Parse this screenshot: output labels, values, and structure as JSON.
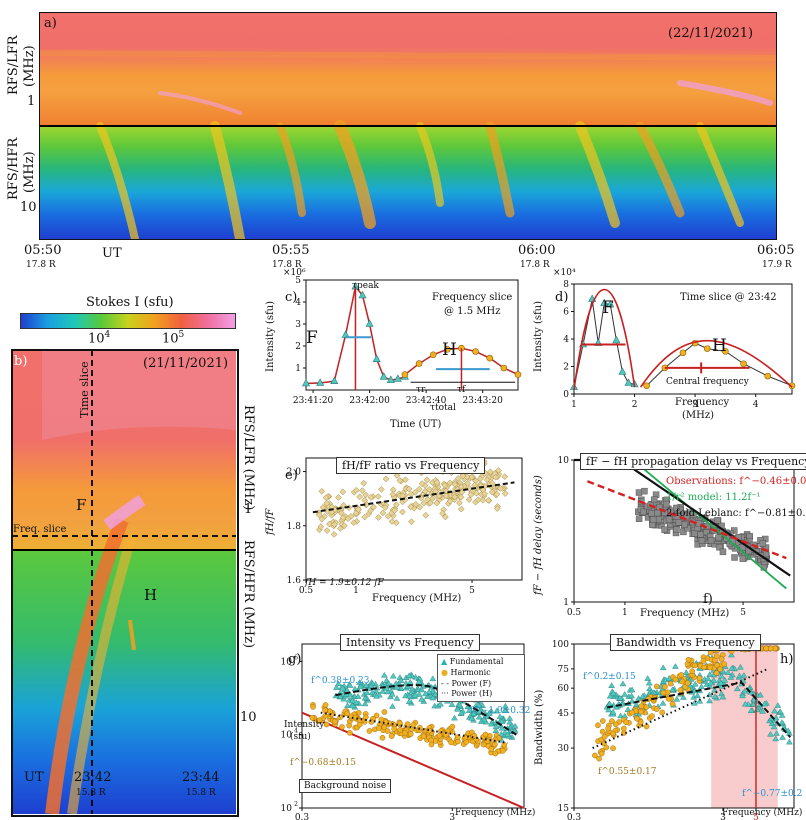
{
  "panel_a": {
    "label": "a)",
    "date": "(22/11/2021)",
    "ylabel_lfr": "RFS/LFR",
    "ylabel_lfr_unit": "(MHz)",
    "ylabel_hfr": "RFS/HFR",
    "ylabel_hfr_unit": "(MHz)",
    "ytick_1": "1",
    "ytick_10": "10",
    "xticks": [
      "05:50",
      "05:55",
      "06:00",
      "06:05"
    ],
    "xticks_dist": [
      "17.8",
      "17.8",
      "17.8",
      "17.9"
    ],
    "dist_unit": "R",
    "ut_label": "UT"
  },
  "colorbar": {
    "title": "Stokes I (sfu)",
    "tick_1e4": "10",
    "tick_1e4_exp": "4",
    "tick_1e5": "10",
    "tick_1e5_exp": "5",
    "colors": [
      "#1e3fd0",
      "#1a9fe0",
      "#1ec8b8",
      "#58c93a",
      "#c8d21e",
      "#f2a01e",
      "#f06040",
      "#f06fa0",
      "#f0a0e6"
    ]
  },
  "panel_b": {
    "label": "b)",
    "date": "(21/11/2021)",
    "time_slice": "Time slice",
    "freq_slice": "Freq. slice",
    "F": "F",
    "H": "H",
    "ylabel_lfr": "RFS/LFR (MHz)",
    "ylabel_hfr": "RFS/HFR (MHz)",
    "ytick_1": "1",
    "ytick_10": "10",
    "xticks": [
      "23:42",
      "23:44"
    ],
    "xticks_dist": [
      "15.8",
      "15.8"
    ],
    "ut_label": "UT"
  },
  "panel_c": {
    "label": "c)",
    "title_line1": "Frequency slice",
    "title_line2": "@ 1.5 MHz",
    "ylabel": "Intensity (sfu)",
    "xlabel": "Time (UT)",
    "scale": "×10⁶",
    "yticks": [
      "1",
      "2",
      "3",
      "4",
      "5"
    ],
    "xticks": [
      "23:41:20",
      "23:42:00",
      "23:42:40",
      "23:43:20"
    ],
    "F": "F",
    "H": "H",
    "tau_peak": "τpeak",
    "tau_r": "τr",
    "tau_f": "τf",
    "tau_total": "τtotal"
  },
  "panel_d": {
    "label": "d)",
    "title": "Time slice @ 23:42",
    "ylabel": "Intensity (sfu)",
    "xlabel_line1": "Frequency",
    "xlabel_line2": "(MHz)",
    "scale": "×10⁴",
    "yticks": [
      "0",
      "2",
      "4",
      "6",
      "8"
    ],
    "xticks": [
      "1",
      "2",
      "3",
      "4"
    ],
    "F": "F",
    "H": "H",
    "central": "Central frequency"
  },
  "panel_e": {
    "label": "e)",
    "title": "fH/fF ratio vs Frequency",
    "ylabel": "fH/fF",
    "xlabel": "Frequency (MHz)",
    "yticks": [
      "1.6",
      "1.8",
      "2.0"
    ],
    "xticks": [
      "0.5",
      "1",
      "5"
    ],
    "fit_label": "fH = 1.9±0.12 fF"
  },
  "panel_f": {
    "label": "f)",
    "title": "fF − fH propagation delay vs Frequency",
    "ylabel": "fF − fH delay (seconds)",
    "xlabel": "Frequency (MHz)",
    "yticks": [
      "1",
      "10"
    ],
    "xticks": [
      "0.5",
      "1",
      "5"
    ],
    "legend_obs": "Observations: f^−0.46±0.04",
    "legend_model": "1/r² model: 11.2f⁻¹",
    "legend_leblanc": "2-fold Leblanc: f^−0.81±0.05",
    "colors": {
      "obs": "#d42020",
      "model": "#1faa55",
      "leblanc": "#111111"
    }
  },
  "panel_g": {
    "label": "g)",
    "title": "Intensity vs Frequency",
    "ylabel_line1": "Intensity",
    "ylabel_line2": "(sfu)",
    "xlabel": "Frequency (MHz)",
    "yticks_exp": [
      "2",
      "4",
      "6"
    ],
    "xticks": [
      "0.3",
      "3"
    ],
    "legend": [
      "Fundamental",
      "Harmonic",
      "Power (F)",
      "Power (H)"
    ],
    "fit_F_top": "f^0.38±0.23",
    "fit_F_right": "f^−1.9±0.32",
    "fit_H": "f^−0.68±0.15",
    "background": "Background noise"
  },
  "panel_h": {
    "label": "h)",
    "title": "Bandwidth vs Frequency",
    "ylabel": "Bandwidth (%)",
    "xlabel": "Frequency (MHz)",
    "yticks": [
      "15",
      "30",
      "45",
      "60",
      "75",
      "100"
    ],
    "xticks": [
      "0.3",
      "3",
      "5"
    ],
    "fit_F": "f^0.2±0.15",
    "fit_H": "f^0.55±0.17",
    "fit_right": "f^−0.77±0.2"
  },
  "chart_data": [
    {
      "type": "heatmap",
      "title": "Dynamic spectrum (22/11/2021)",
      "xlabel": "UT",
      "ylabel": "Frequency (MHz)",
      "x_ticks": [
        "05:50",
        "05:55",
        "06:00",
        "06:05"
      ],
      "y_ticks": [
        1,
        10
      ]
    },
    {
      "type": "heatmap",
      "title": "Dynamic spectrum (21/11/2021)",
      "x_ticks": [
        "23:42",
        "23:44"
      ],
      "y_ticks": [
        1,
        10
      ]
    },
    {
      "type": "line",
      "title": "Frequency slice @ 1.5 MHz",
      "xlabel": "Time (UT)",
      "ylabel": "Intensity (sfu)",
      "unit_scale": 1000000,
      "ylim": [
        0,
        5
      ],
      "series": [
        {
          "name": "F",
          "x_sec": [
            0,
            10,
            20,
            28,
            35,
            40,
            45,
            50,
            55,
            60,
            65,
            70
          ],
          "values": [
            0.3,
            0.32,
            0.4,
            2.5,
            4.7,
            4.3,
            3.0,
            1.4,
            0.6,
            0.45,
            0.5,
            0.6
          ]
        },
        {
          "name": "H",
          "x_sec": [
            70,
            80,
            90,
            100,
            110,
            120,
            130,
            140,
            150
          ],
          "values": [
            0.7,
            1.2,
            1.6,
            1.85,
            1.9,
            1.75,
            1.45,
            1.0,
            0.7
          ]
        }
      ]
    },
    {
      "type": "line",
      "title": "Time slice @ 23:42",
      "xlabel": "Frequency (MHz)",
      "ylabel": "Intensity (sfu)",
      "unit_scale": 10000,
      "ylim": [
        0,
        8
      ],
      "xlim": [
        1,
        4.6
      ],
      "series": [
        {
          "name": "F",
          "x": [
            1.0,
            1.15,
            1.3,
            1.4,
            1.5,
            1.6,
            1.7,
            1.8,
            1.9,
            2.0
          ],
          "values": [
            0.5,
            3.6,
            6.9,
            3.7,
            6.6,
            6.5,
            3.9,
            1.6,
            0.8,
            0.7
          ]
        },
        {
          "name": "H",
          "x": [
            2.2,
            2.5,
            2.8,
            3.0,
            3.2,
            3.5,
            3.8,
            4.2,
            4.6
          ],
          "values": [
            0.6,
            1.9,
            3.0,
            3.7,
            3.3,
            3.1,
            2.2,
            1.3,
            0.6
          ]
        }
      ]
    },
    {
      "type": "scatter",
      "title": "fH/fF ratio vs Frequency",
      "xlabel": "Frequency (MHz)",
      "ylabel": "fH/fF",
      "xlim": [
        0.5,
        10
      ],
      "ylim": [
        1.6,
        2.05
      ],
      "fit": {
        "label": "fH = 1.9±0.12 fF",
        "x": [
          0.55,
          9
        ],
        "y": [
          1.85,
          1.96
        ]
      }
    },
    {
      "type": "scatter",
      "title": "fF − fH propagation delay vs Frequency",
      "xlabel": "Frequency (MHz)",
      "ylabel": "delay (seconds)",
      "xlim": [
        0.5,
        10
      ],
      "ylim": [
        1,
        10
      ],
      "series": [
        {
          "name": "Observations",
          "exponent": -0.46
        },
        {
          "name": "1/r^2 model",
          "coefficient": 11.2,
          "exponent": -1
        },
        {
          "name": "2-fold Leblanc",
          "exponent": -0.81
        }
      ]
    },
    {
      "type": "scatter",
      "title": "Intensity vs Frequency",
      "xlabel": "Frequency (MHz)",
      "ylabel": "Intensity (sfu)",
      "xlim": [
        0.3,
        9
      ],
      "ylim": [
        100,
        3000000
      ],
      "series": [
        {
          "name": "Fundamental",
          "exponents": [
            0.38,
            -1.9
          ]
        },
        {
          "name": "Harmonic",
          "exponent": -0.68
        },
        {
          "name": "Background noise"
        }
      ]
    },
    {
      "type": "scatter",
      "title": "Bandwidth vs Frequency",
      "xlabel": "Frequency (MHz)",
      "ylabel": "Bandwidth (%)",
      "xlim": [
        0.3,
        9
      ],
      "ylim": [
        15,
        100
      ],
      "shaded_region_MHz": [
        2.5,
        7
      ],
      "vertical_line_MHz": 5,
      "series": [
        {
          "name": "Fundamental",
          "exponents": [
            0.2,
            -0.77
          ]
        },
        {
          "name": "Harmonic",
          "exponent": 0.55
        }
      ]
    }
  ]
}
